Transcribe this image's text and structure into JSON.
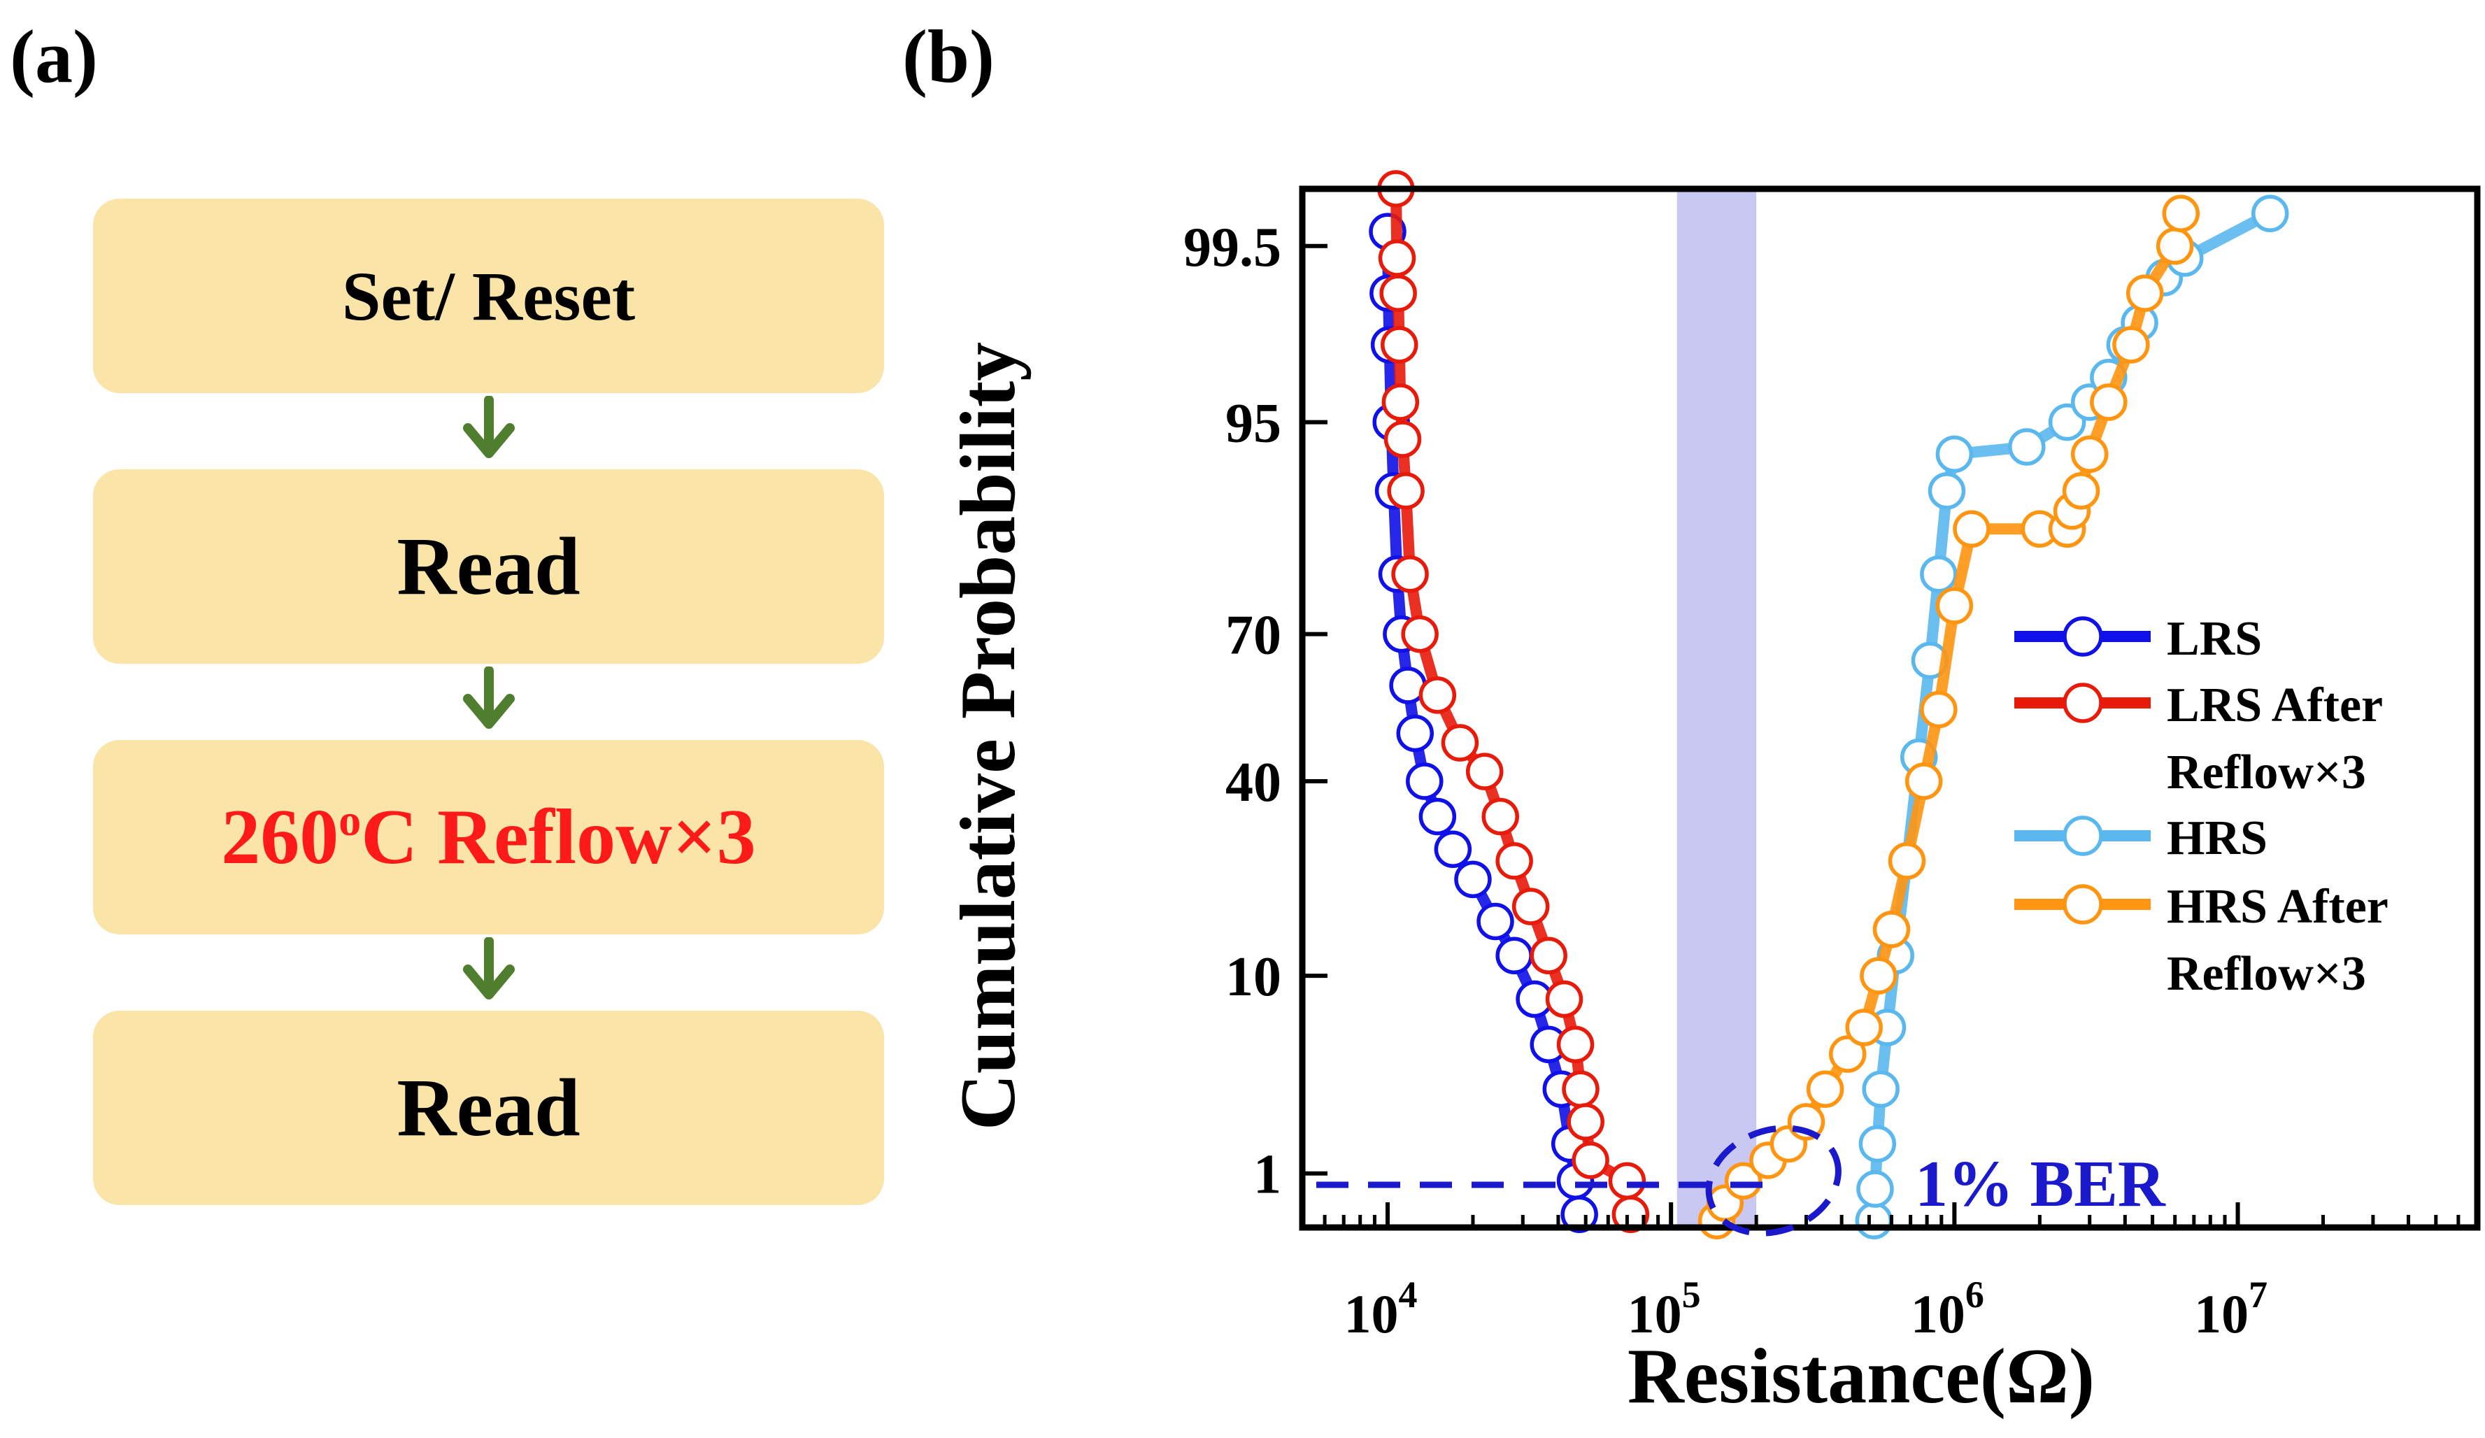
{
  "panels": {
    "a": {
      "label": "(a)",
      "steps": [
        {
          "text": "Set/ Reset"
        },
        {
          "text": "Read"
        },
        {
          "text_main": "260",
          "text_sup": "o",
          "text_rest": "C Reflow×3",
          "color": "#ff1a1a"
        },
        {
          "text": "Read"
        }
      ],
      "box_color": "#fbe4a8",
      "arrow_color": "#4f7f2e"
    },
    "b": {
      "label": "(b)"
    }
  },
  "chart_data": {
    "type": "scatter",
    "xlabel": "Resistance(Ω)",
    "ylabel": "Cumulative Probability",
    "x_scale": "log",
    "y_scale": "normal-probability",
    "xlim": [
      5000,
      70000000
    ],
    "ylim": [
      0.45,
      99.8
    ],
    "x_ticks": [
      {
        "value": 10000,
        "base": "10",
        "exp": "4"
      },
      {
        "value": 100000,
        "base": "10",
        "exp": "5"
      },
      {
        "value": 1000000,
        "base": "10",
        "exp": "6"
      },
      {
        "value": 10000000,
        "base": "10",
        "exp": "7"
      }
    ],
    "y_ticks": [
      {
        "value": 1,
        "label": "1"
      },
      {
        "value": 10,
        "label": "10"
      },
      {
        "value": 40,
        "label": "40"
      },
      {
        "value": 70,
        "label": "70"
      },
      {
        "value": 95,
        "label": "95"
      },
      {
        "value": 99.5,
        "label": "99.5"
      }
    ],
    "shaded_band": {
      "x": [
        105000,
        200000
      ],
      "color": "#c8c8f2"
    },
    "annotation": {
      "text": "1% BER",
      "color": "#1a1acc",
      "y": 0.85
    },
    "legend": {
      "position": "right",
      "entries": [
        {
          "line1": "LRS",
          "line2": "",
          "color": "#1010e8"
        },
        {
          "line1": "LRS After",
          "line2": "Reflow×3",
          "color": "#e81a0a"
        },
        {
          "line1": "HRS",
          "line2": "",
          "color": "#5ab8ee"
        },
        {
          "line1": "HRS After",
          "line2": "Reflow×3",
          "color": "#ff9510"
        }
      ]
    },
    "series": [
      {
        "name": "LRS",
        "color": "#1010e8",
        "x": [
          10000,
          10050,
          10150,
          10300,
          10500,
          10800,
          11200,
          11800,
          12500,
          13500,
          15000,
          17000,
          20000,
          24000,
          28000,
          33000,
          37000,
          41000,
          44000,
          46000,
          47500
        ],
        "y": [
          99.6,
          99.0,
          98.0,
          95.0,
          90.0,
          80.0,
          70.0,
          60.0,
          50.0,
          40.0,
          33.0,
          27.0,
          22.0,
          16.0,
          12.0,
          8.0,
          5.0,
          3.0,
          1.5,
          0.9,
          0.55
        ]
      },
      {
        "name": "LRS After Reflow×3",
        "color": "#e81a0a",
        "x": [
          10700,
          10800,
          10900,
          11000,
          11100,
          11300,
          11600,
          12000,
          13000,
          15000,
          18000,
          22000,
          25000,
          28000,
          32000,
          37000,
          42000,
          46000,
          48000,
          50000,
          52000,
          70000,
          72000
        ],
        "y": [
          99.8,
          99.4,
          99.0,
          98.0,
          96.0,
          94.0,
          90.0,
          80.0,
          70.0,
          58.0,
          48.0,
          42.0,
          33.0,
          25.0,
          18.0,
          12.0,
          8.0,
          5.0,
          3.0,
          2.0,
          1.2,
          0.9,
          0.55
        ]
      },
      {
        "name": "HRS",
        "color": "#5ab8ee",
        "x": [
          520000,
          525000,
          535000,
          550000,
          580000,
          620000,
          680000,
          750000,
          820000,
          880000,
          940000,
          1000000,
          1800000,
          2500000,
          3000000,
          3500000,
          4000000,
          4500000,
          5500000,
          6500000,
          13000000
        ],
        "y": [
          0.5,
          0.8,
          1.5,
          3.0,
          6.0,
          12.0,
          25.0,
          45.0,
          65.0,
          80.0,
          90.0,
          93.0,
          93.5,
          95.0,
          96.0,
          97.0,
          98.0,
          98.5,
          99.2,
          99.4,
          99.7
        ]
      },
      {
        "name": "HRS After Reflow×3",
        "color": "#ff9510",
        "x": [
          145000,
          155000,
          180000,
          220000,
          260000,
          300000,
          350000,
          420000,
          480000,
          540000,
          600000,
          680000,
          780000,
          880000,
          1000000,
          1150000,
          2000000,
          2500000,
          2600000,
          2800000,
          3000000,
          3500000,
          4200000,
          4700000,
          6000000,
          6300000
        ],
        "y": [
          0.5,
          0.65,
          0.9,
          1.2,
          1.5,
          2.0,
          3.0,
          4.5,
          6.0,
          10.0,
          15.0,
          25.0,
          40.0,
          55.0,
          75.0,
          86.0,
          86.0,
          86.0,
          88.0,
          90.0,
          93.0,
          96.0,
          98.0,
          99.0,
          99.5,
          99.7
        ]
      }
    ]
  }
}
